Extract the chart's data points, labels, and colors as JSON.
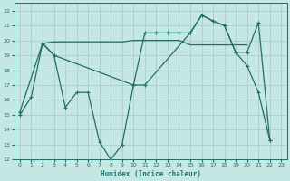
{
  "bg_color": "#c6e8e4",
  "grid_color": "#a8d0cc",
  "line_color": "#1e6e68",
  "xlabel": "Humidex (Indice chaleur)",
  "ylim": [
    12,
    22.5
  ],
  "xlim": [
    -0.5,
    23.5
  ],
  "yticks": [
    12,
    13,
    14,
    15,
    16,
    17,
    18,
    19,
    20,
    21,
    22
  ],
  "xticks": [
    0,
    1,
    2,
    3,
    4,
    5,
    6,
    7,
    8,
    9,
    10,
    11,
    12,
    13,
    14,
    15,
    16,
    17,
    18,
    19,
    20,
    21,
    22,
    23
  ],
  "lineA_x": [
    0,
    1,
    2,
    3,
    4,
    5,
    6,
    7,
    8,
    9,
    10,
    11,
    12,
    13,
    14,
    15,
    16,
    17,
    18,
    19,
    20,
    21,
    22
  ],
  "lineA_y": [
    15.0,
    16.2,
    19.8,
    19.0,
    15.5,
    16.5,
    16.5,
    13.2,
    12.0,
    13.0,
    17.0,
    20.5,
    20.5,
    20.5,
    20.5,
    20.5,
    21.7,
    21.3,
    21.0,
    19.2,
    18.3,
    16.5,
    13.3
  ],
  "lineB_x": [
    2,
    3,
    4,
    5,
    6,
    7,
    8,
    9,
    10,
    11,
    12,
    13,
    14,
    15,
    16,
    17,
    18,
    19,
    20
  ],
  "lineB_y": [
    19.8,
    19.9,
    19.9,
    19.9,
    19.9,
    19.9,
    19.9,
    19.9,
    20.0,
    20.0,
    20.0,
    20.0,
    20.0,
    19.7,
    19.7,
    19.7,
    19.7,
    19.7,
    19.7
  ],
  "lineC_x": [
    0,
    2,
    3,
    10,
    11,
    15,
    16,
    17,
    18,
    19,
    20,
    21,
    22
  ],
  "lineC_y": [
    15.2,
    19.8,
    19.0,
    17.0,
    17.0,
    20.5,
    21.7,
    21.3,
    21.0,
    19.2,
    19.2,
    21.2,
    13.3
  ]
}
